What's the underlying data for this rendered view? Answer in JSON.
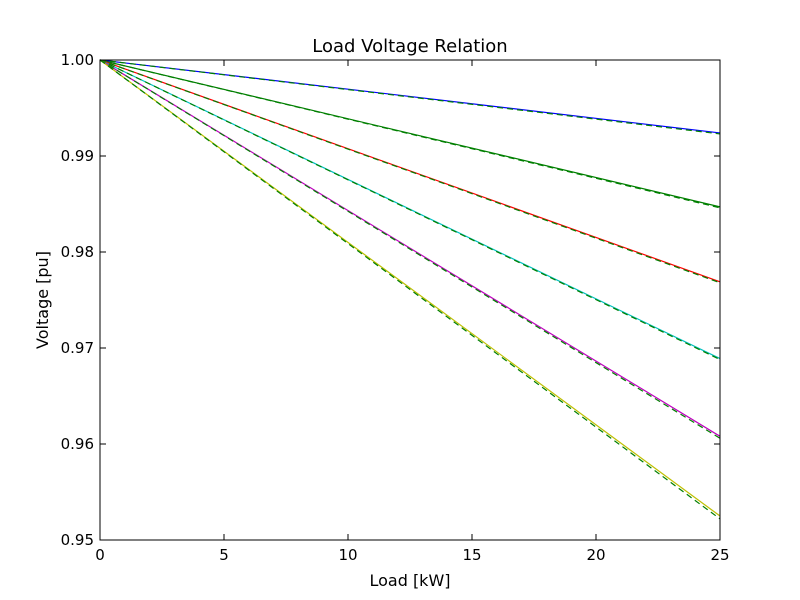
{
  "chart_data": {
    "type": "line",
    "title": "Load Voltage Relation",
    "xlabel": "Load [kW]",
    "ylabel": "Voltage [pu]",
    "xlim": [
      0,
      25
    ],
    "ylim": [
      0.95,
      1.0
    ],
    "xticks": [
      0,
      5,
      10,
      15,
      20,
      25
    ],
    "yticks": [
      0.95,
      0.96,
      0.97,
      0.98,
      0.99,
      1.0
    ],
    "ytick_labels": [
      "0.95",
      "0.96",
      "0.97",
      "0.98",
      "0.99",
      "1.00"
    ],
    "grid": false,
    "legend": "none",
    "series": [
      {
        "style": "solid",
        "color": "#0000ff",
        "x": [
          0,
          25
        ],
        "y": [
          1.0,
          0.9924
        ]
      },
      {
        "style": "dashed",
        "color": "#007f00",
        "x": [
          0,
          25
        ],
        "y": [
          1.0,
          0.9923
        ]
      },
      {
        "style": "solid",
        "color": "#007f00",
        "x": [
          0,
          25
        ],
        "y": [
          1.0,
          0.9847
        ]
      },
      {
        "style": "dashed",
        "color": "#007f00",
        "x": [
          0,
          25
        ],
        "y": [
          1.0,
          0.9846
        ]
      },
      {
        "style": "solid",
        "color": "#ff0000",
        "x": [
          0,
          25
        ],
        "y": [
          1.0,
          0.9769
        ]
      },
      {
        "style": "dashed",
        "color": "#007f00",
        "x": [
          0,
          25
        ],
        "y": [
          1.0,
          0.9768
        ]
      },
      {
        "style": "solid",
        "color": "#00bfbf",
        "x": [
          0,
          25
        ],
        "y": [
          1.0,
          0.9689
        ]
      },
      {
        "style": "dashed",
        "color": "#007f00",
        "x": [
          0,
          25
        ],
        "y": [
          1.0,
          0.9688
        ]
      },
      {
        "style": "solid",
        "color": "#bf00bf",
        "x": [
          0,
          25
        ],
        "y": [
          1.0,
          0.9608
        ]
      },
      {
        "style": "dashed",
        "color": "#007f00",
        "x": [
          0,
          25
        ],
        "y": [
          1.0,
          0.9606
        ]
      },
      {
        "style": "solid",
        "color": "#bfbf00",
        "x": [
          0,
          25
        ],
        "y": [
          1.0,
          0.9525
        ]
      },
      {
        "style": "dashed",
        "color": "#007f00",
        "x": [
          0,
          25
        ],
        "y": [
          1.0,
          0.9522
        ]
      }
    ]
  }
}
